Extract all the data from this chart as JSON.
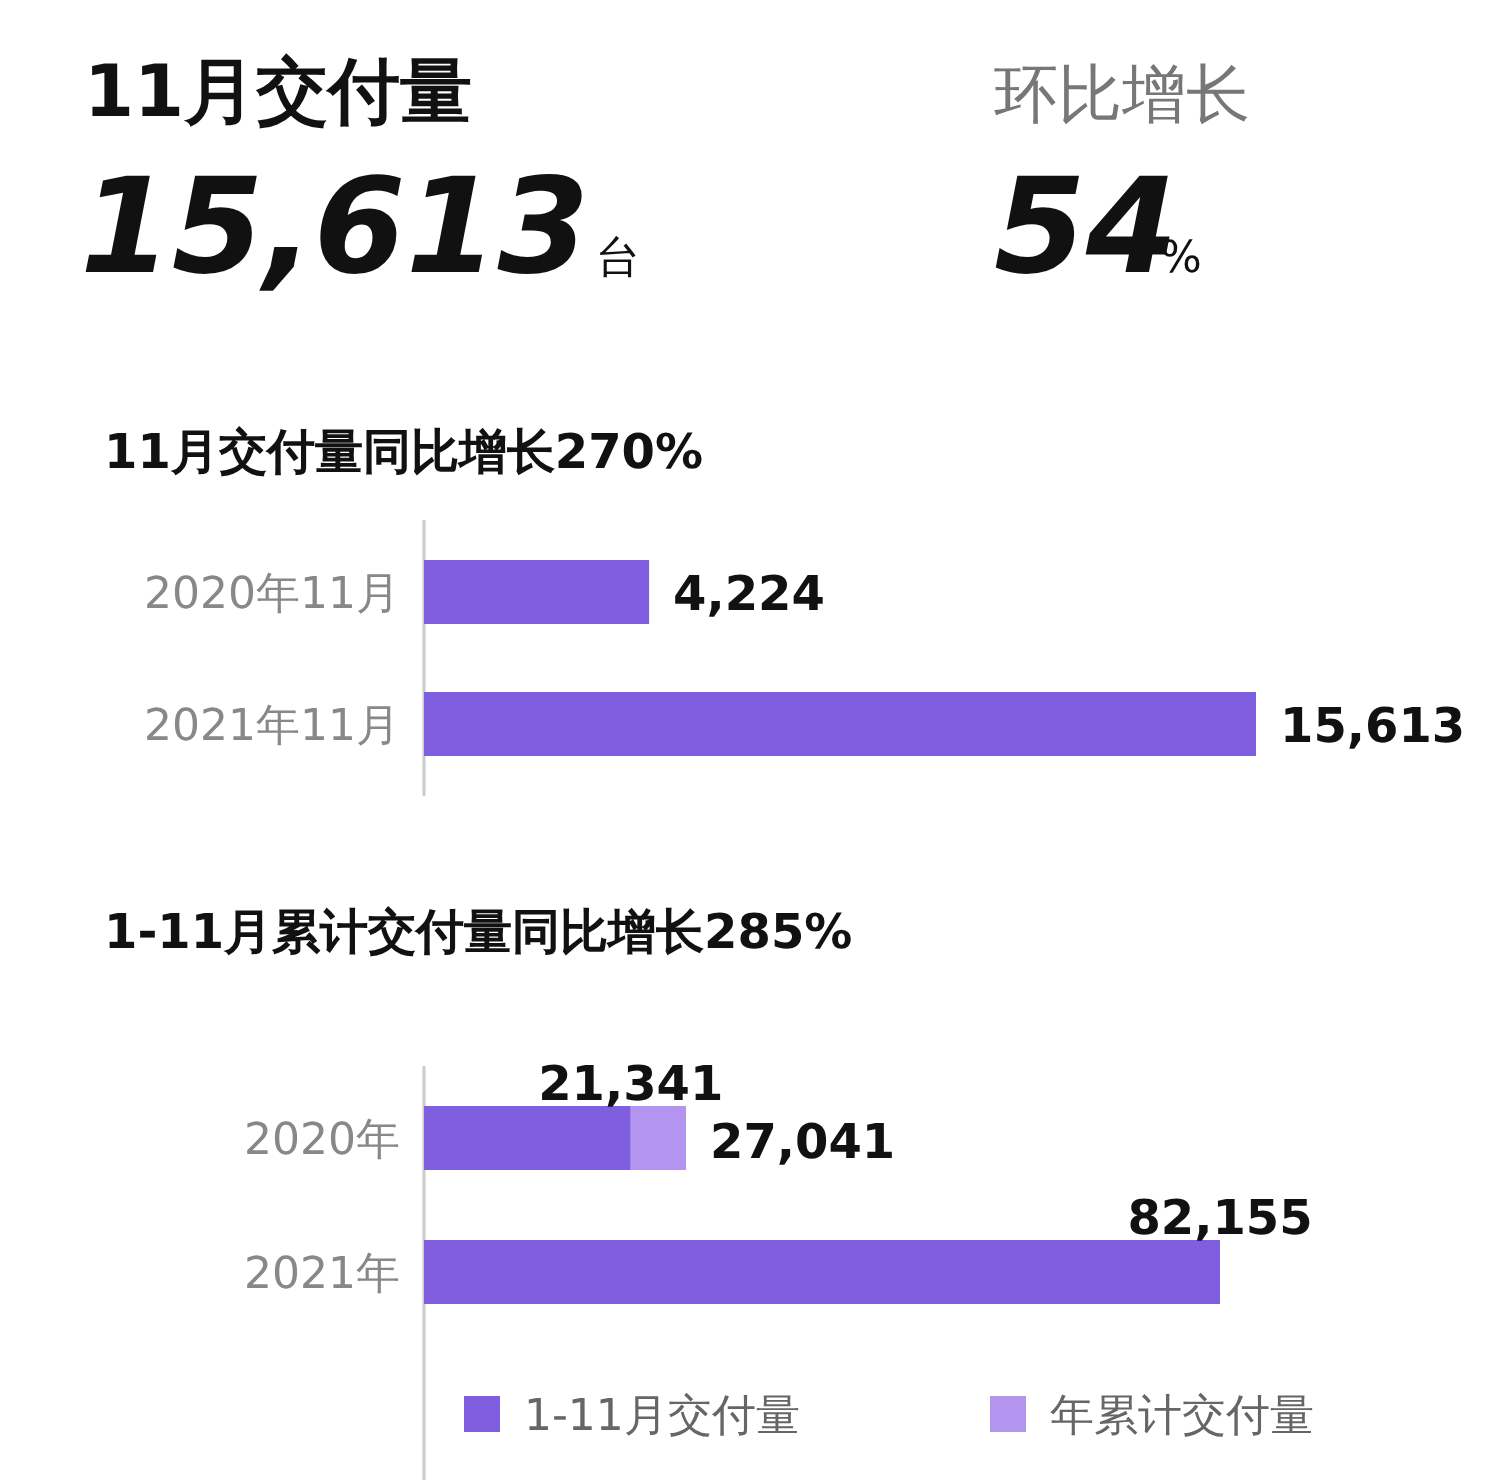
{
  "chart_data": [
    {
      "type": "other",
      "title": "11月交付量",
      "annotations": [
        "15,613",
        "台",
        "环比增长",
        "54",
        "%"
      ]
    },
    {
      "type": "bar",
      "orientation": "horizontal",
      "title": "11月交付量同比增长270%",
      "categories": [
        "2020年11月",
        "2021年11月"
      ],
      "series": [
        {
          "color": "#7f5ee0",
          "values": [
            4224,
            15613
          ],
          "value_labels": [
            "4,224",
            "15,613"
          ]
        }
      ]
    },
    {
      "type": "bar",
      "orientation": "horizontal",
      "stacked": true,
      "title": "1-11月累计交付量同比增长285%",
      "categories": [
        "2020年",
        "2021年"
      ],
      "legend": "bottom",
      "series": [
        {
          "name": "1-11月交付量",
          "color": "#7f5ee0",
          "values": [
            21341,
            82155
          ],
          "value_labels": [
            "21,341",
            "82,155"
          ]
        },
        {
          "name": "年累计交付量",
          "color": "#b394ee",
          "values": [
            5700,
            null
          ]
        }
      ],
      "totals": [
        "27,041",
        null
      ]
    }
  ]
}
